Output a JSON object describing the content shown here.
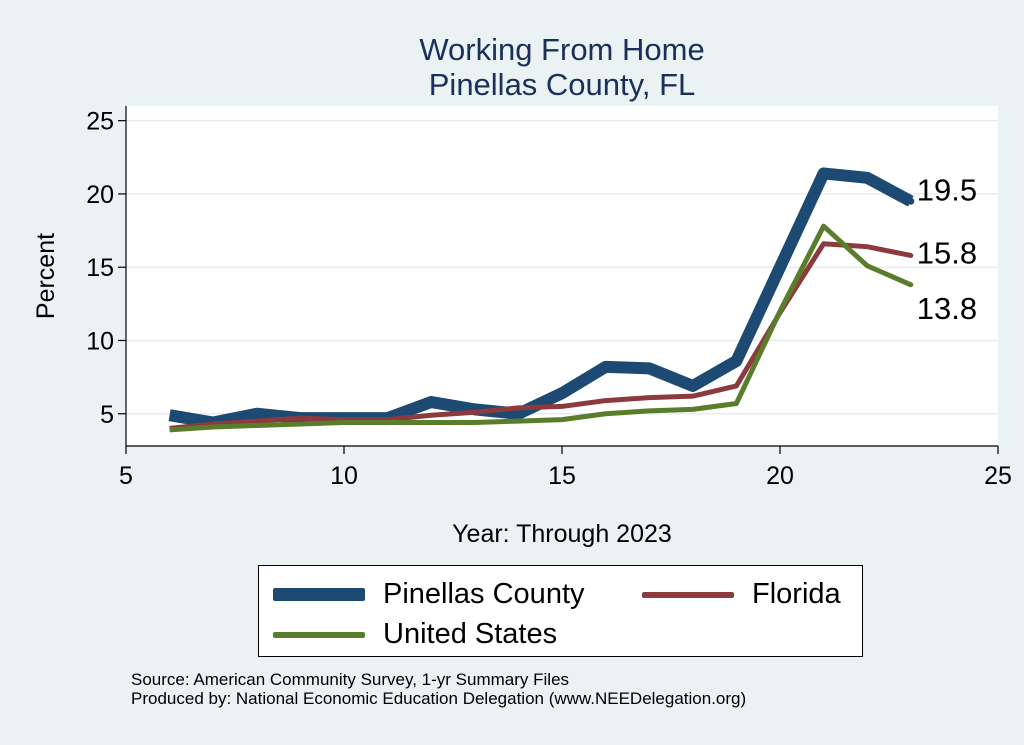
{
  "chart_data": {
    "type": "line",
    "title": "Working From Home",
    "subtitle": "Pinellas County, FL",
    "xlabel": "Year: Through 2023",
    "ylabel": "Percent",
    "xlim": [
      5,
      25
    ],
    "ylim": [
      2.8,
      26
    ],
    "xticks": [
      5,
      10,
      15,
      20,
      25
    ],
    "yticks": [
      5,
      10,
      15,
      20,
      25
    ],
    "grid": true,
    "legend_position": "bottom",
    "x": [
      6,
      7,
      8,
      9,
      10,
      11,
      12,
      13,
      14,
      15,
      16,
      17,
      18,
      19,
      20,
      21,
      22,
      23
    ],
    "series": [
      {
        "name": "Pinellas County",
        "color": "#1c4a72",
        "values": [
          4.9,
          4.4,
          5.0,
          4.7,
          4.7,
          4.7,
          5.8,
          5.3,
          5.0,
          6.4,
          8.2,
          8.1,
          6.9,
          8.6,
          15.0,
          21.4,
          21.1,
          19.5
        ],
        "end_label": "19.5"
      },
      {
        "name": "Florida",
        "color": "#8c3a3e",
        "values": [
          4.0,
          4.3,
          4.5,
          4.7,
          4.6,
          4.6,
          4.9,
          5.1,
          5.4,
          5.5,
          5.9,
          6.1,
          6.2,
          6.9,
          11.9,
          16.6,
          16.4,
          15.8
        ],
        "end_label": "15.8"
      },
      {
        "name": "United States",
        "color": "#5a7d2c",
        "values": [
          3.9,
          4.1,
          4.2,
          4.3,
          4.4,
          4.4,
          4.4,
          4.4,
          4.5,
          4.6,
          5.0,
          5.2,
          5.3,
          5.7,
          12.0,
          17.8,
          15.1,
          13.8
        ],
        "end_label": "13.8"
      }
    ]
  },
  "source_lines": [
    "Source: American Community Survey, 1-yr Summary Files",
    "Produced by: National Economic Education Delegation (www.NEEDelegation.org)"
  ]
}
